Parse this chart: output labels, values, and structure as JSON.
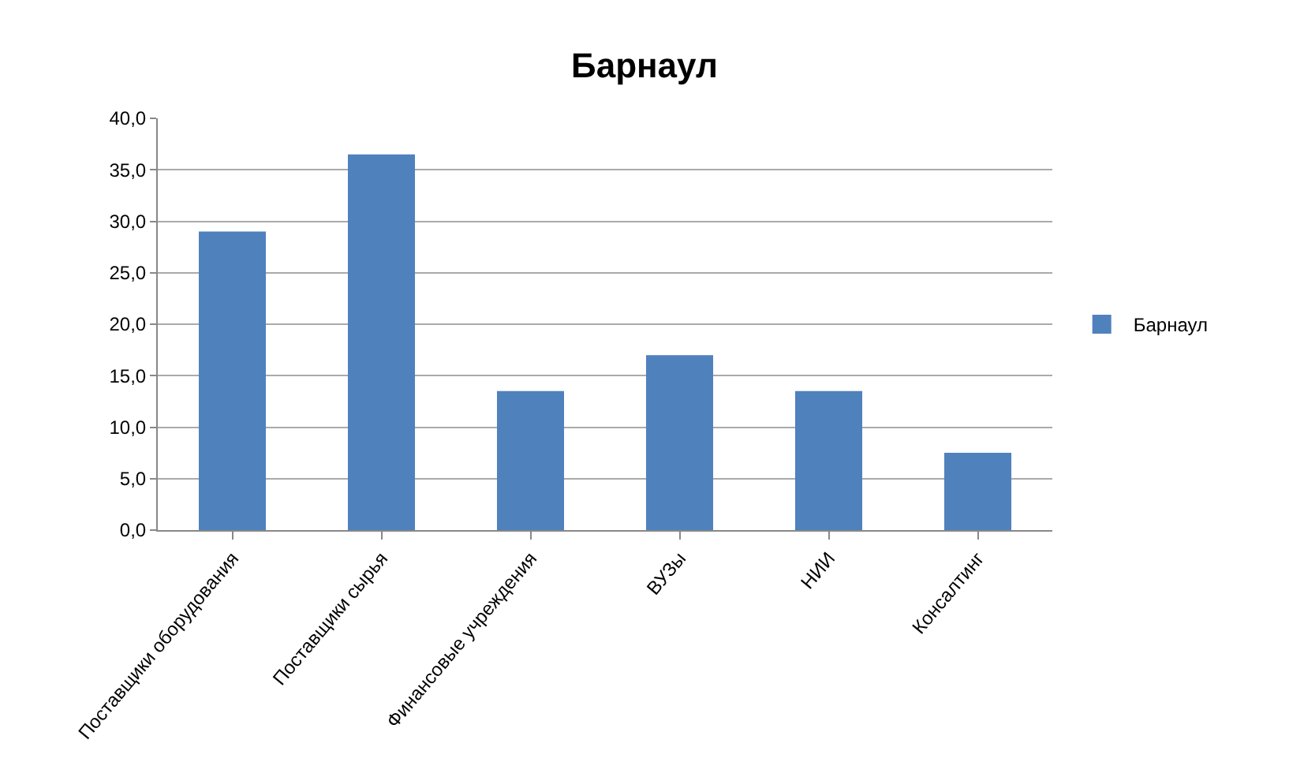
{
  "chart_data": {
    "type": "bar",
    "title": "Барнаул",
    "categories": [
      "Поставщики оборудования",
      "Поставщики сырья",
      "Финансовые учреждения",
      "ВУЗы",
      "НИИ",
      "Консалтинг"
    ],
    "series": [
      {
        "name": "Барнаул",
        "color": "#4f81bd",
        "values": [
          29,
          36.5,
          13.5,
          17,
          13.5,
          7.5
        ]
      }
    ],
    "ylim": [
      0,
      40
    ],
    "yticks": [
      {
        "value": 0,
        "label": "0,0"
      },
      {
        "value": 5,
        "label": "5,0"
      },
      {
        "value": 10,
        "label": "10,0"
      },
      {
        "value": 15,
        "label": "15,0"
      },
      {
        "value": 20,
        "label": "20,0"
      },
      {
        "value": 25,
        "label": "25,0"
      },
      {
        "value": 30,
        "label": "30,0"
      },
      {
        "value": 35,
        "label": "35,0"
      },
      {
        "value": 40,
        "label": "40,0"
      }
    ],
    "grid": "y",
    "legend": "right"
  }
}
